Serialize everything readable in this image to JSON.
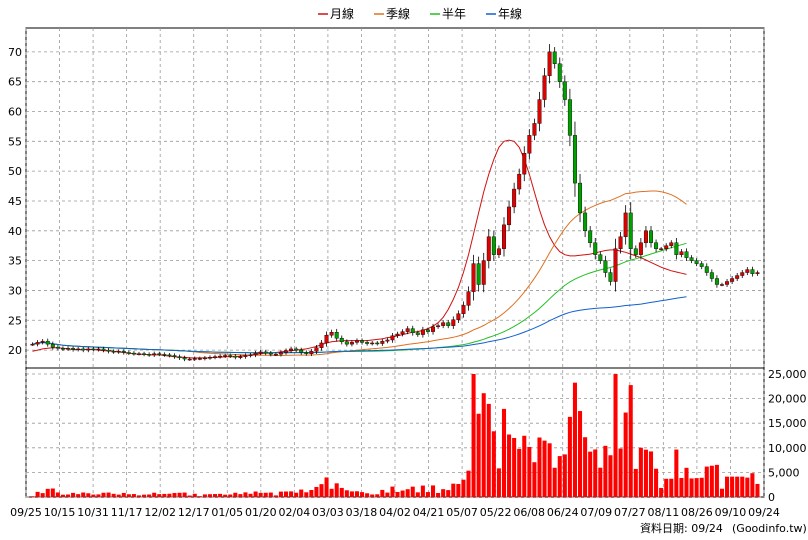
{
  "chart_data": {
    "type": "candlestick",
    "legend": [
      {
        "name": "月線",
        "color": "#d01010"
      },
      {
        "name": "季線",
        "color": "#e07020"
      },
      {
        "name": "半年",
        "color": "#20c020"
      },
      {
        "name": "年線",
        "color": "#1060d0"
      }
    ],
    "x_ticks": [
      "09/25",
      "10/15",
      "10/31",
      "11/17",
      "12/02",
      "12/17",
      "01/05",
      "01/20",
      "02/04",
      "03/03",
      "03/18",
      "04/02",
      "04/21",
      "05/07",
      "05/22",
      "06/08",
      "06/24",
      "07/09",
      "07/27",
      "08/11",
      "08/26",
      "09/10",
      "09/24"
    ],
    "price_axis": {
      "ylim": [
        17,
        74
      ],
      "ticks": [
        20,
        25,
        30,
        35,
        40,
        45,
        50,
        55,
        60,
        65,
        70
      ]
    },
    "volume_axis": {
      "ylim": [
        0,
        25000
      ],
      "ticks": [
        "0",
        "5,000",
        "10,000",
        "15,000",
        "20,000",
        "25,000"
      ],
      "tick_values": [
        0,
        5000,
        10000,
        15000,
        20000,
        25000
      ]
    },
    "price_close": [
      21,
      21.3,
      21.5,
      21,
      20.5,
      20.3,
      20.2,
      20.3,
      20.1,
      20.2,
      20,
      20.2,
      20.1,
      20.2,
      20,
      19.8,
      19.7,
      19.8,
      19.6,
      19.5,
      19.4,
      19.4,
      19.3,
      19.2,
      19.4,
      19.3,
      19.2,
      19.1,
      18.9,
      18.7,
      18.5,
      18.5,
      18.6,
      18.6,
      18.7,
      18.8,
      18.9,
      19,
      19.1,
      19,
      18.8,
      18.9,
      19.1,
      19.2,
      19.5,
      19.7,
      19.5,
      19.3,
      19.3,
      19.6,
      19.9,
      20.2,
      20,
      19.6,
      19.4,
      19.8,
      20.4,
      21.2,
      22.5,
      23,
      22,
      21.4,
      21,
      21.3,
      21.6,
      21.3,
      21.1,
      21.2,
      21.1,
      21.5,
      21.7,
      22.4,
      22.7,
      23.1,
      23.6,
      22.9,
      22.6,
      23.4,
      23.1,
      23.9,
      24.1,
      24.6,
      24.1,
      25.1,
      26.1,
      27.5,
      29.8,
      34.5,
      31,
      35,
      39,
      36,
      37,
      41,
      44,
      47,
      49.5,
      53,
      56,
      58,
      62,
      66,
      70,
      68,
      65,
      62,
      56,
      48,
      43,
      40,
      38,
      36,
      35,
      33,
      31.5,
      37,
      39,
      43,
      37,
      36,
      38,
      40,
      38,
      37,
      37,
      37.5,
      38,
      36,
      36.5,
      35.5,
      35,
      34.5,
      34,
      33,
      32,
      31,
      31,
      31.5,
      32,
      32.5,
      33,
      33.5,
      32.8,
      33
    ],
    "ma_month": [
      19.8,
      20,
      20.2,
      20.3,
      20.4,
      20.4,
      20.3,
      20.2,
      20.1,
      20.1,
      20.1,
      20.1,
      20.1,
      20,
      19.9,
      19.9,
      19.8,
      19.7,
      19.6,
      19.5,
      19.4,
      19.3,
      19.3,
      19.2,
      19.2,
      19.2,
      19.1,
      19,
      18.9,
      18.8,
      18.8,
      18.7,
      18.7,
      18.7,
      18.7,
      18.7,
      18.8,
      18.8,
      18.9,
      18.9,
      18.9,
      19,
      19.1,
      19.2,
      19.3,
      19.4,
      19.5,
      19.5,
      19.6,
      19.7,
      19.8,
      19.9,
      20,
      20.1,
      20.2,
      20.4,
      20.6,
      20.9,
      21.2,
      21.4,
      21.5,
      21.6,
      21.6,
      21.6,
      21.6,
      21.6,
      21.6,
      21.7,
      21.8,
      21.9,
      22.1,
      22.2,
      22.4,
      22.6,
      22.8,
      23,
      23.1,
      23.3,
      23.6,
      24,
      24.6,
      25.5,
      26.8,
      28.5,
      30.5,
      33,
      36,
      39.5,
      43,
      46.5,
      49.5,
      52,
      54,
      55,
      55.2,
      55,
      54,
      52,
      49.5,
      46.5,
      43.5,
      41,
      39,
      37.5,
      36.5,
      36,
      35.8,
      35.8,
      35.9,
      36,
      36.1,
      36.3,
      36.5,
      36.7,
      36.8,
      36.8,
      36.6,
      36.4,
      36.1,
      35.8,
      35.5,
      35.1,
      34.7,
      34.3,
      33.9,
      33.6,
      33.3,
      33.1,
      32.9,
      32.7
    ]
  },
  "footer": {
    "label": "資料日期: 09/24",
    "source": "(Goodinfo.tw)"
  }
}
